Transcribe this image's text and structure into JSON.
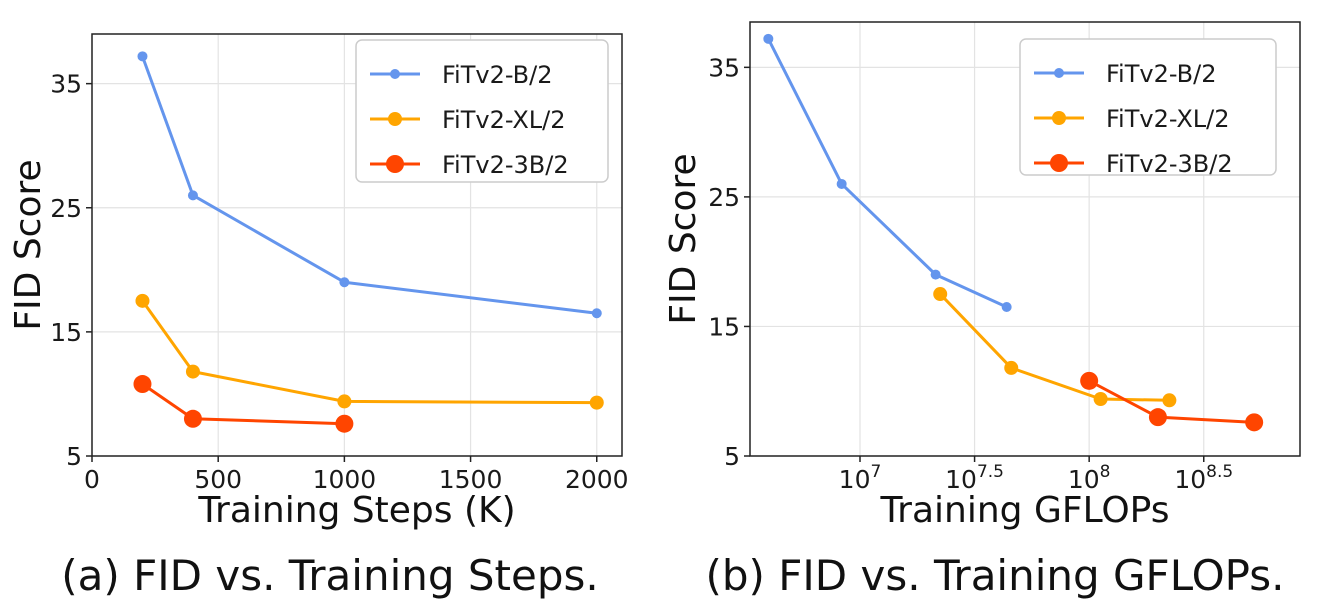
{
  "chart_data": [
    {
      "type": "line",
      "caption": "(a) FID vs. Training Steps.",
      "xlabel": "Training Steps (K)",
      "ylabel": "FID Score",
      "xlim": [
        0,
        2100
      ],
      "ylim": [
        5,
        39
      ],
      "xticks": [
        0,
        500,
        1000,
        1500,
        2000
      ],
      "xtick_labels": [
        "0",
        "500",
        "1000",
        "1500",
        "2000"
      ],
      "yticks": [
        5,
        15,
        25,
        35
      ],
      "ytick_labels": [
        "5",
        "15",
        "25",
        "35"
      ],
      "x_scale": "linear",
      "grid": true,
      "legend": "top-right",
      "series": [
        {
          "name": "FiTv2-B/2",
          "color": "#6495ED",
          "x": [
            200,
            400,
            1000,
            2000
          ],
          "y": [
            37.2,
            26.0,
            19.0,
            16.5
          ]
        },
        {
          "name": "FiTv2-XL/2",
          "color": "#FFA500",
          "x": [
            200,
            400,
            1000,
            2000
          ],
          "y": [
            17.5,
            11.8,
            9.4,
            9.3
          ]
        },
        {
          "name": "FiTv2-3B/2",
          "color": "#FF4500",
          "x": [
            200,
            400,
            1000
          ],
          "y": [
            10.8,
            8.0,
            7.6
          ]
        }
      ]
    },
    {
      "type": "line",
      "caption": "(b) FID vs. Training GFLOPs.",
      "xlabel": "Training GFLOPs",
      "ylabel": "FID Score",
      "xlim": [
        6.52,
        8.92
      ],
      "ylim": [
        5,
        38.5
      ],
      "xticks": [
        7,
        7.5,
        8,
        8.5
      ],
      "xtick_labels": [
        "10",
        "10",
        "10",
        "10"
      ],
      "xtick_exponents": [
        "7",
        "7.5",
        "8",
        "8.5"
      ],
      "yticks": [
        5,
        15,
        25,
        35
      ],
      "ytick_labels": [
        "5",
        "15",
        "25",
        "35"
      ],
      "x_scale": "log10",
      "grid": true,
      "legend": "top-right",
      "series": [
        {
          "name": "FiTv2-B/2",
          "color": "#6495ED",
          "x": [
            6.6,
            6.92,
            7.33,
            7.64
          ],
          "y": [
            37.2,
            26.0,
            19.0,
            16.5
          ]
        },
        {
          "name": "FiTv2-XL/2",
          "color": "#FFA500",
          "x": [
            7.35,
            7.66,
            8.05,
            8.35
          ],
          "y": [
            17.5,
            11.8,
            9.4,
            9.3
          ]
        },
        {
          "name": "FiTv2-3B/2",
          "color": "#FF4500",
          "x": [
            8.0,
            8.3,
            8.72
          ],
          "y": [
            10.8,
            8.0,
            7.6
          ]
        }
      ]
    }
  ]
}
